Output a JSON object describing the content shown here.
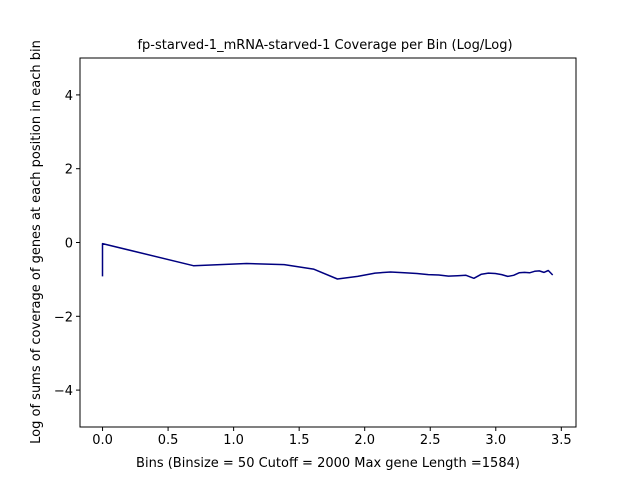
{
  "chart_data": {
    "type": "line",
    "title": "fp-starved-1_mRNA-starved-1 Coverage per Bin (Log/Log)",
    "xlabel": "Bins  (Binsize = 50 Cutoff = 2000 Max gene Length =1584)",
    "ylabel": "Log of sums of coverage of genes at each position in each bin",
    "xlim": [
      -0.172,
      3.612
    ],
    "ylim": [
      -5,
      5
    ],
    "xticks": [
      "0.0",
      "0.5",
      "1.0",
      "1.5",
      "2.0",
      "2.5",
      "3.0",
      "3.5"
    ],
    "xtick_values": [
      0,
      0.5,
      1.0,
      1.5,
      2.0,
      2.5,
      3.0,
      3.5
    ],
    "yticks": [
      "−4",
      "−2",
      "0",
      "2",
      "4"
    ],
    "ytick_values": [
      -4,
      -2,
      0,
      2,
      4
    ],
    "grid": false,
    "line_color": "#000080",
    "series": [
      {
        "x": [
          0.0,
          0.0,
          0.693,
          1.099,
          1.386,
          1.609,
          1.792,
          1.946,
          2.079,
          2.197,
          2.303,
          2.398,
          2.485,
          2.565,
          2.639,
          2.708,
          2.773,
          2.833,
          2.89,
          2.944,
          2.996,
          3.045,
          3.091,
          3.136,
          3.178,
          3.219,
          3.258,
          3.296,
          3.332,
          3.367,
          3.401,
          3.434
        ],
        "y": [
          -0.92,
          -0.03,
          -0.63,
          -0.57,
          -0.6,
          -0.72,
          -0.99,
          -0.92,
          -0.83,
          -0.8,
          -0.82,
          -0.84,
          -0.87,
          -0.88,
          -0.91,
          -0.9,
          -0.89,
          -0.97,
          -0.86,
          -0.83,
          -0.84,
          -0.87,
          -0.92,
          -0.89,
          -0.82,
          -0.81,
          -0.82,
          -0.78,
          -0.77,
          -0.81,
          -0.76,
          -0.88
        ]
      }
    ]
  }
}
